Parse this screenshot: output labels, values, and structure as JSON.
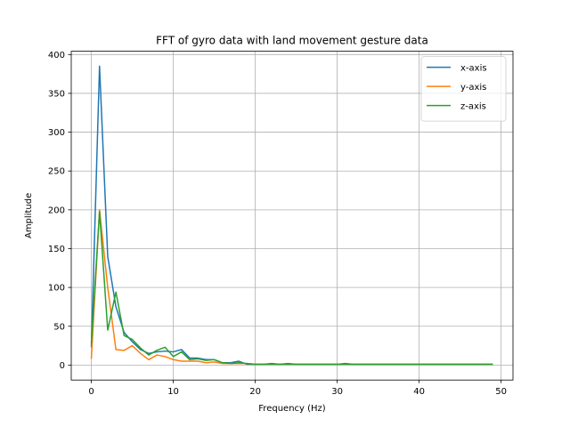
{
  "chart_data": {
    "type": "line",
    "title": "FFT of gyro data with land movement gesture data",
    "xlabel": "Frequency (Hz)",
    "ylabel": "Amplitude",
    "xlim": [
      -2.45,
      51.45
    ],
    "ylim": [
      -19.25,
      404.25
    ],
    "xticks": [
      0,
      10,
      20,
      30,
      40,
      50
    ],
    "yticks": [
      0,
      50,
      100,
      150,
      200,
      250,
      300,
      350,
      400
    ],
    "grid": true,
    "legend_position": "upper right",
    "x": [
      0,
      1,
      2,
      3,
      4,
      5,
      6,
      7,
      8,
      9,
      10,
      11,
      12,
      13,
      14,
      15,
      16,
      17,
      18,
      19,
      20,
      21,
      22,
      23,
      24,
      25,
      26,
      27,
      28,
      29,
      30,
      31,
      32,
      33,
      34,
      35,
      36,
      37,
      38,
      39,
      40,
      41,
      42,
      43,
      44,
      45,
      46,
      47,
      48,
      49
    ],
    "series": [
      {
        "name": "x-axis",
        "color": "#1f77b4",
        "values": [
          23,
          385,
          140,
          75,
          42,
          30,
          20,
          15,
          17,
          18,
          17,
          20,
          9,
          9,
          7,
          7,
          3,
          3,
          5,
          1,
          1,
          1,
          2,
          1,
          2,
          1,
          1,
          1,
          1,
          1,
          1,
          2,
          1,
          1,
          1,
          1,
          1,
          1,
          1,
          1,
          1,
          1,
          1,
          1,
          1,
          1,
          1,
          1,
          1,
          1
        ]
      },
      {
        "name": "y-axis",
        "color": "#ff7f0e",
        "values": [
          8,
          200,
          100,
          20,
          19,
          25,
          15,
          7,
          13,
          11,
          7,
          5,
          5,
          5,
          3,
          4,
          2,
          2,
          2,
          2,
          1,
          1,
          1,
          1,
          1,
          1,
          1,
          1,
          1,
          1,
          1,
          1,
          1,
          1,
          1,
          1,
          1,
          1,
          1,
          1,
          1,
          1,
          1,
          1,
          1,
          1,
          1,
          1,
          1,
          1
        ]
      },
      {
        "name": "z-axis",
        "color": "#2ca02c",
        "values": [
          28,
          198,
          45,
          94,
          38,
          33,
          22,
          13,
          19,
          23,
          11,
          17,
          7,
          8,
          6,
          7,
          3,
          2,
          3,
          2,
          1,
          1,
          1,
          1,
          1,
          1,
          1,
          1,
          1,
          1,
          1,
          1,
          1,
          1,
          1,
          1,
          1,
          1,
          1,
          1,
          1,
          1,
          1,
          1,
          1,
          1,
          1,
          1,
          1,
          1
        ]
      }
    ]
  }
}
